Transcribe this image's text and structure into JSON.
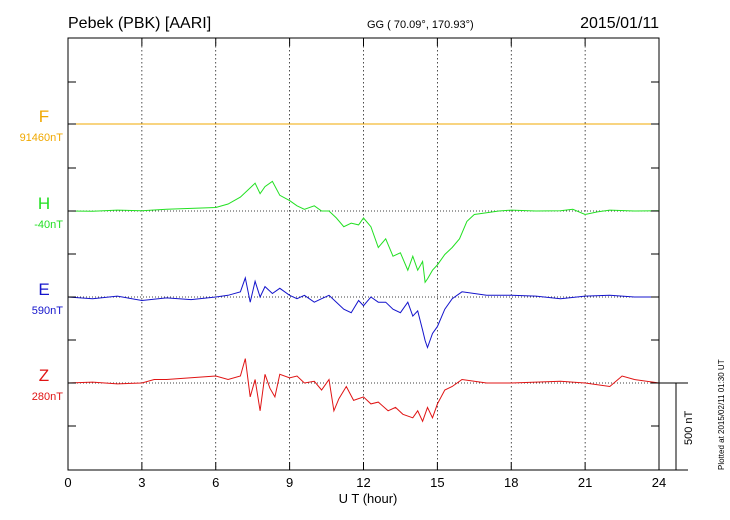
{
  "header": {
    "station": "Pebek (PBK)  [AARI]",
    "coords": "GG ( 70.09°, 170.93°)",
    "date": "2015/01/11"
  },
  "plotted_note": "Plotted at 2015/02/11 01:30 UT",
  "scale_label": "500 nT",
  "colors": {
    "F": "#f0a800",
    "H": "#22e022",
    "E": "#1414cc",
    "Z": "#e01414"
  },
  "chart_data": {
    "type": "line",
    "title": "Pebek (PBK)  [AARI]",
    "xlabel": "U T (hour)",
    "xlim": [
      0,
      24
    ],
    "x_ticks": [
      0,
      3,
      6,
      9,
      12,
      15,
      18,
      21,
      24
    ],
    "x_tick_labels": [
      "0",
      "3",
      "6",
      "9",
      "12",
      "15",
      "18",
      "21",
      "24"
    ],
    "unit": "nT",
    "scale_bar_nT": 500,
    "series": [
      {
        "name": "F",
        "baseline_label": "91460nT",
        "baseline": 91460,
        "x": [
          0,
          24
        ],
        "values": [
          91460,
          91460
        ]
      },
      {
        "name": "H",
        "baseline_label": "-40nT",
        "baseline": -40,
        "x": [
          0,
          1,
          2,
          3,
          4,
          5,
          6,
          6.5,
          7,
          7.3,
          7.6,
          7.8,
          8.0,
          8.3,
          8.6,
          9,
          9.3,
          9.6,
          10,
          10.3,
          10.6,
          10.9,
          11.2,
          11.5,
          11.8,
          12,
          12.3,
          12.6,
          12.9,
          13.2,
          13.5,
          13.8,
          14.0,
          14.2,
          14.4,
          14.5,
          14.6,
          14.8,
          15.0,
          15.3,
          15.6,
          15.9,
          16.2,
          16.5,
          17,
          17.5,
          18,
          19,
          20,
          20.5,
          21,
          21.5,
          22,
          23,
          24
        ],
        "values": [
          -40,
          -42,
          -35,
          -38,
          -30,
          -25,
          -20,
          0,
          40,
          80,
          120,
          60,
          100,
          130,
          50,
          20,
          -10,
          -30,
          -10,
          -40,
          -40,
          -80,
          -130,
          -110,
          -120,
          -80,
          -130,
          -250,
          -200,
          -300,
          -280,
          -380,
          -300,
          -380,
          -330,
          -450,
          -430,
          -380,
          -350,
          -290,
          -250,
          -200,
          -100,
          -60,
          -50,
          -40,
          -35,
          -40,
          -38,
          -30,
          -60,
          -45,
          -35,
          -40,
          -38
        ]
      },
      {
        "name": "E",
        "baseline_label": "590nT",
        "baseline": 590,
        "x": [
          0,
          1,
          2,
          3,
          4,
          5,
          6,
          6.5,
          7,
          7.2,
          7.4,
          7.6,
          7.8,
          8.0,
          8.3,
          8.6,
          9,
          9.3,
          9.6,
          10,
          10.3,
          10.6,
          10.9,
          11.2,
          11.5,
          11.8,
          12,
          12.3,
          12.6,
          12.9,
          13.2,
          13.5,
          13.8,
          14.0,
          14.2,
          14.4,
          14.5,
          14.6,
          14.8,
          15.0,
          15.3,
          15.6,
          16,
          17,
          18,
          19,
          20,
          21,
          22,
          23,
          24
        ],
        "values": [
          590,
          580,
          595,
          570,
          585,
          575,
          590,
          600,
          620,
          700,
          560,
          680,
          590,
          650,
          610,
          640,
          600,
          580,
          600,
          560,
          580,
          600,
          560,
          520,
          500,
          570,
          540,
          590,
          560,
          560,
          520,
          500,
          560,
          480,
          510,
          400,
          340,
          300,
          380,
          420,
          520,
          580,
          620,
          600,
          600,
          595,
          580,
          595,
          600,
          590,
          590
        ]
      },
      {
        "name": "Z",
        "baseline_label": "280nT",
        "baseline": 280,
        "x": [
          0,
          1,
          2,
          3,
          3.5,
          4,
          5,
          6,
          6.5,
          7,
          7.2,
          7.4,
          7.6,
          7.8,
          8.0,
          8.2,
          8.4,
          8.6,
          9,
          9.3,
          9.6,
          10,
          10.3,
          10.6,
          10.8,
          11.0,
          11.3,
          11.6,
          12,
          12.3,
          12.6,
          13,
          13.3,
          13.6,
          14,
          14.2,
          14.4,
          14.6,
          14.8,
          15,
          15.3,
          15.6,
          16,
          17,
          18,
          19,
          20,
          21,
          22,
          22.5,
          23,
          24
        ],
        "values": [
          280,
          285,
          275,
          280,
          300,
          300,
          310,
          320,
          300,
          320,
          420,
          200,
          300,
          120,
          330,
          250,
          200,
          330,
          310,
          320,
          280,
          290,
          240,
          300,
          120,
          190,
          260,
          180,
          200,
          160,
          170,
          120,
          140,
          100,
          80,
          120,
          60,
          140,
          80,
          160,
          240,
          260,
          300,
          280,
          280,
          285,
          290,
          280,
          260,
          320,
          300,
          280
        ]
      }
    ]
  }
}
